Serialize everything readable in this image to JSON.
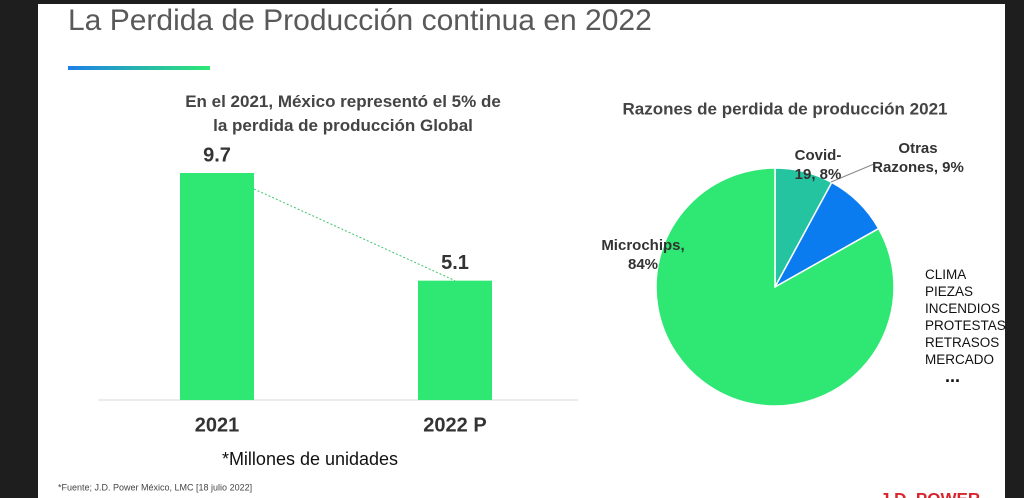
{
  "slide": {
    "title": "La Perdida de Producción continua en 2022",
    "source": "*Fuente; J.D. Power México, LMC [18 julio 2022]",
    "logo": "J.D. POWER"
  },
  "chart_data": [
    {
      "type": "bar",
      "title": "En el 2021, México representó el 5% de la perdida de producción Global",
      "categories": [
        "2021",
        "2022 P"
      ],
      "values": [
        9.7,
        5.1
      ],
      "color": "#2ee873",
      "note": "*Millones de unidades"
    },
    {
      "type": "pie",
      "title": "Razones de perdida de producción 2021",
      "categories": [
        "Covid-19",
        "Otras Razones",
        "Microchips"
      ],
      "values": [
        8,
        9,
        84
      ],
      "value_labels": [
        "Covid-19, 8%",
        "Otras Razones, 9%",
        "Microchips, 84%"
      ],
      "colors": [
        "#25c4a0",
        "#0a7cf0",
        "#2ee873"
      ],
      "annotations": [
        "CLIMA",
        "PIEZAS",
        "INCENDIOS",
        "PROTESTAS",
        "RETRASOS",
        "MERCADO",
        "..."
      ]
    }
  ]
}
